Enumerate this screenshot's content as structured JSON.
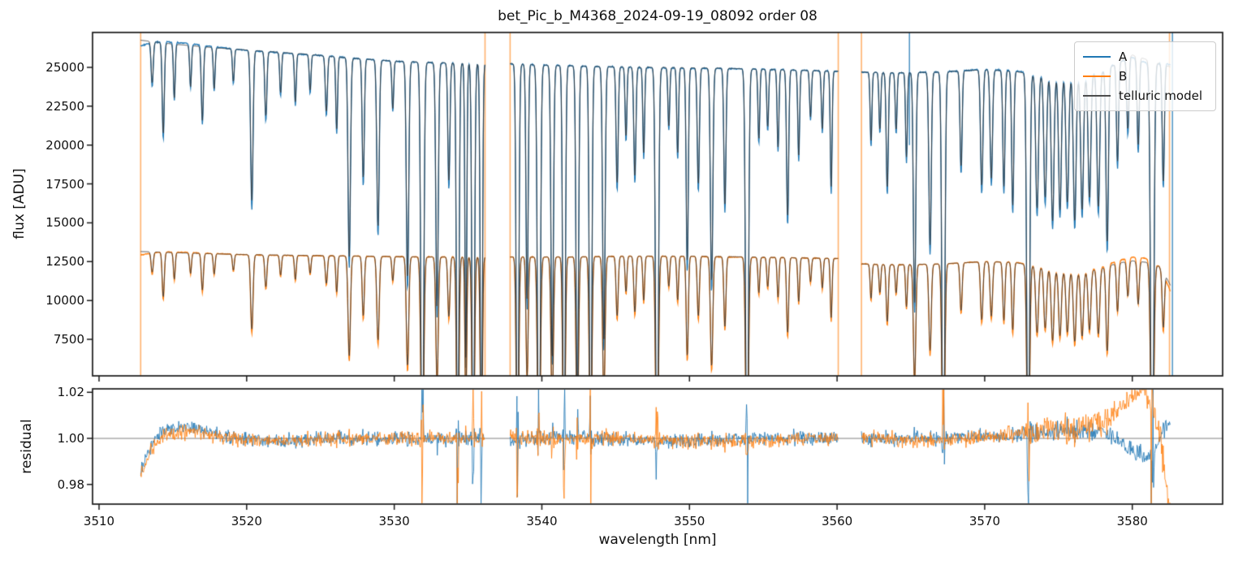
{
  "figure": {
    "title": "bet_Pic_b_M4368_2024-09-19_08092  order 08",
    "xlabel": "wavelength [nm]",
    "ylabel_top": "flux [ADU]",
    "ylabel_bottom": "residual"
  },
  "legend": {
    "entries": [
      {
        "label": "A",
        "color": "#1f77b4"
      },
      {
        "label": "B",
        "color": "#ff7f0e"
      },
      {
        "label": "telluric model",
        "color": "#4d4d4d"
      }
    ]
  },
  "chart_data": {
    "type": "line",
    "title": "bet_Pic_b_M4368_2024-09-19_08092  order 08",
    "xlabel": "wavelength [nm]",
    "xlim": [
      3509.56,
      3586.12
    ],
    "xticks": [
      3510,
      3520,
      3530,
      3540,
      3550,
      3560,
      3570,
      3580
    ],
    "grid": false,
    "legend_position": "upper right",
    "panels": [
      {
        "name": "flux",
        "ylabel": "flux [ADU]",
        "ylim": [
          5150,
          27246
        ],
        "yticks": [
          7500,
          10000,
          12500,
          15000,
          17500,
          20000,
          22500,
          25000
        ],
        "series": [
          "A",
          "B",
          "telluric model"
        ]
      },
      {
        "name": "residual",
        "ylabel": "residual",
        "ylim": [
          0.9715,
          1.0215
        ],
        "yticks": [
          0.98,
          1.0,
          1.02
        ],
        "hline": 1.0,
        "series": [
          "A residual",
          "B residual"
        ]
      }
    ],
    "colors": {
      "A": "#1f77b4",
      "B": "#ff7f0e",
      "model": "#3a3a3a",
      "vline_orange": "rgba(255,127,14,0.6)",
      "vline_blue": "rgba(31,119,180,0.75)",
      "hline": "#808080"
    },
    "segments": [
      [
        3512.82,
        3536.15
      ],
      [
        3537.85,
        3560.08
      ],
      [
        3561.65,
        3582.6
      ]
    ],
    "vlines": [
      {
        "x": 3512.82,
        "color": "orange"
      },
      {
        "x": 3536.15,
        "color": "orange"
      },
      {
        "x": 3537.85,
        "color": "orange"
      },
      {
        "x": 3560.08,
        "color": "orange"
      },
      {
        "x": 3561.65,
        "color": "orange"
      },
      {
        "x": 3582.52,
        "color": "orange"
      },
      {
        "x": 3582.72,
        "color": "blue"
      }
    ],
    "spike_up": {
      "x": 3564.9,
      "color": "blue",
      "v0": 20000,
      "v1": 27246
    },
    "continuum_A": [
      [
        3512.8,
        26750
      ],
      [
        3515,
        26500
      ],
      [
        3518,
        26250
      ],
      [
        3521,
        26050
      ],
      [
        3524,
        25850
      ],
      [
        3527,
        25600
      ],
      [
        3530,
        25400
      ],
      [
        3533,
        25300
      ],
      [
        3536.2,
        25250
      ],
      [
        3537.8,
        25250
      ],
      [
        3540,
        25150
      ],
      [
        3544,
        25050
      ],
      [
        3548,
        25000
      ],
      [
        3552,
        24950
      ],
      [
        3556,
        24850
      ],
      [
        3560.1,
        24750
      ],
      [
        3561.6,
        24700
      ],
      [
        3564,
        24650
      ],
      [
        3567,
        24700
      ],
      [
        3570,
        24850
      ],
      [
        3572,
        24750
      ],
      [
        3573.5,
        24500
      ],
      [
        3575,
        24350
      ],
      [
        3576.5,
        24300
      ],
      [
        3578,
        24700
      ],
      [
        3579,
        25300
      ],
      [
        3580,
        25800
      ],
      [
        3581,
        25500
      ],
      [
        3582,
        25200
      ],
      [
        3582.7,
        25000
      ]
    ],
    "continuum_B": [
      [
        3512.8,
        13150
      ],
      [
        3516,
        13050
      ],
      [
        3520,
        12950
      ],
      [
        3524,
        12900
      ],
      [
        3528,
        12850
      ],
      [
        3532,
        12800
      ],
      [
        3536.2,
        12800
      ],
      [
        3537.8,
        12800
      ],
      [
        3542,
        12800
      ],
      [
        3546,
        12850
      ],
      [
        3550,
        12850
      ],
      [
        3554,
        12800
      ],
      [
        3557,
        12750
      ],
      [
        3560.1,
        12700
      ],
      [
        3561.6,
        12350
      ],
      [
        3564,
        12300
      ],
      [
        3567,
        12350
      ],
      [
        3570,
        12500
      ],
      [
        3572,
        12450
      ],
      [
        3573.5,
        12200
      ],
      [
        3575,
        11900
      ],
      [
        3576.5,
        11800
      ],
      [
        3578,
        12100
      ],
      [
        3579,
        12400
      ],
      [
        3580,
        12550
      ],
      [
        3581,
        12450
      ],
      [
        3581.8,
        12200
      ],
      [
        3582.3,
        11500
      ],
      [
        3582.7,
        10750
      ]
    ],
    "deviation_A": [
      [
        3512.8,
        0.986
      ],
      [
        3513.6,
        0.998
      ],
      [
        3514.5,
        1.004
      ],
      [
        3516,
        1.005
      ],
      [
        3518,
        1.002
      ],
      [
        3520,
        0.9995
      ],
      [
        3523,
        0.999
      ],
      [
        3526,
        1.0005
      ],
      [
        3529,
        1.0
      ],
      [
        3532,
        0.9995
      ],
      [
        3535,
        1.0
      ],
      [
        3538,
        0.9995
      ],
      [
        3541,
        1.0005
      ],
      [
        3544,
        1.0
      ],
      [
        3547,
        0.999
      ],
      [
        3550,
        0.9985
      ],
      [
        3553,
        0.9995
      ],
      [
        3556,
        1.0005
      ],
      [
        3559,
        1.0
      ],
      [
        3562,
        0.9995
      ],
      [
        3565,
        1.0
      ],
      [
        3568,
        1.0005
      ],
      [
        3571,
        1.001
      ],
      [
        3573,
        1.002
      ],
      [
        3575,
        1.0035
      ],
      [
        3577,
        1.004
      ],
      [
        3578.5,
        1.0015
      ],
      [
        3579.5,
        0.997
      ],
      [
        3580.3,
        0.9925
      ],
      [
        3581,
        0.991
      ],
      [
        3581.6,
        0.995
      ],
      [
        3582.2,
        1.006
      ],
      [
        3582.7,
        1.005
      ]
    ],
    "deviation_B": [
      [
        3512.8,
        0.983
      ],
      [
        3513.6,
        0.996
      ],
      [
        3514.5,
        1.002
      ],
      [
        3516,
        1.003
      ],
      [
        3518,
        1.001
      ],
      [
        3520,
        0.9995
      ],
      [
        3523,
        0.9985
      ],
      [
        3526,
        1.0
      ],
      [
        3529,
        0.9995
      ],
      [
        3532,
        1.0005
      ],
      [
        3535,
        1.0
      ],
      [
        3538,
        1.0
      ],
      [
        3541,
        0.9995
      ],
      [
        3544,
        1.0005
      ],
      [
        3547,
        0.9995
      ],
      [
        3550,
        0.999
      ],
      [
        3553,
        0.9985
      ],
      [
        3556,
        0.9995
      ],
      [
        3559,
        1.0
      ],
      [
        3562,
        1.0005
      ],
      [
        3565,
        0.999
      ],
      [
        3568,
        0.9995
      ],
      [
        3571,
        1.001
      ],
      [
        3573,
        1.0025
      ],
      [
        3574.5,
        1.004
      ],
      [
        3576,
        1.003
      ],
      [
        3577,
        1.005
      ],
      [
        3578,
        1.008
      ],
      [
        3579,
        1.013
      ],
      [
        3580,
        1.019
      ],
      [
        3580.8,
        1.0215
      ],
      [
        3581.4,
        1.013
      ],
      [
        3581.9,
        0.998
      ],
      [
        3582.3,
        0.981
      ],
      [
        3582.7,
        0.957
      ]
    ],
    "telluric_lines": [
      [
        3513.6,
        0.1,
        0.07
      ],
      [
        3514.35,
        0.22,
        0.07
      ],
      [
        3515.1,
        0.13,
        0.06
      ],
      [
        3516.2,
        0.1,
        0.06
      ],
      [
        3517.0,
        0.18,
        0.07
      ],
      [
        3517.8,
        0.1,
        0.06
      ],
      [
        3519.1,
        0.08,
        0.06
      ],
      [
        3520.35,
        0.37,
        0.08
      ],
      [
        3521.3,
        0.16,
        0.07
      ],
      [
        3522.3,
        0.1,
        0.06
      ],
      [
        3523.3,
        0.12,
        0.06
      ],
      [
        3524.3,
        0.09,
        0.06
      ],
      [
        3525.4,
        0.14,
        0.07
      ],
      [
        3526.1,
        0.18,
        0.06
      ],
      [
        3526.95,
        0.5,
        0.08
      ],
      [
        3527.9,
        0.3,
        0.07
      ],
      [
        3528.9,
        0.42,
        0.08
      ],
      [
        3529.9,
        0.12,
        0.06
      ],
      [
        3530.9,
        0.55,
        0.08
      ],
      [
        3531.9,
        1.15,
        0.09
      ],
      [
        3532.9,
        0.62,
        0.08
      ],
      [
        3533.7,
        0.3,
        0.07
      ],
      [
        3534.3,
        1.1,
        0.08
      ],
      [
        3534.85,
        0.75,
        0.06
      ],
      [
        3535.35,
        1.15,
        0.08
      ],
      [
        3535.9,
        1.05,
        0.07
      ],
      [
        3538.35,
        1.15,
        0.08
      ],
      [
        3539.0,
        0.6,
        0.07
      ],
      [
        3539.8,
        1.2,
        0.09
      ],
      [
        3540.7,
        0.75,
        0.08
      ],
      [
        3541.5,
        1.15,
        0.08
      ],
      [
        3542.4,
        0.9,
        0.08
      ],
      [
        3543.3,
        1.1,
        0.08
      ],
      [
        3544.2,
        0.7,
        0.08
      ],
      [
        3545.1,
        0.3,
        0.07
      ],
      [
        3545.7,
        0.18,
        0.06
      ],
      [
        3546.3,
        0.28,
        0.07
      ],
      [
        3546.9,
        0.22,
        0.06
      ],
      [
        3547.8,
        1.15,
        0.09
      ],
      [
        3548.6,
        0.15,
        0.06
      ],
      [
        3549.2,
        0.22,
        0.06
      ],
      [
        3549.85,
        0.5,
        0.07
      ],
      [
        3550.6,
        0.3,
        0.07
      ],
      [
        3551.5,
        0.55,
        0.08
      ],
      [
        3552.4,
        0.35,
        0.07
      ],
      [
        3553.9,
        1.15,
        0.09
      ],
      [
        3554.7,
        0.18,
        0.06
      ],
      [
        3555.3,
        0.15,
        0.06
      ],
      [
        3556.0,
        0.2,
        0.06
      ],
      [
        3556.65,
        0.38,
        0.07
      ],
      [
        3557.4,
        0.22,
        0.06
      ],
      [
        3558.2,
        0.12,
        0.06
      ],
      [
        3559.0,
        0.15,
        0.06
      ],
      [
        3559.6,
        0.3,
        0.06
      ],
      [
        3562.3,
        0.18,
        0.06
      ],
      [
        3562.9,
        0.15,
        0.06
      ],
      [
        3563.4,
        0.3,
        0.07
      ],
      [
        3564.0,
        0.15,
        0.06
      ],
      [
        3564.7,
        0.22,
        0.06
      ],
      [
        3565.25,
        0.6,
        0.08
      ],
      [
        3566.3,
        0.45,
        0.08
      ],
      [
        3567.2,
        1.15,
        0.09
      ],
      [
        3568.4,
        0.25,
        0.07
      ],
      [
        3569.8,
        0.3,
        0.08
      ],
      [
        3570.45,
        0.28,
        0.08
      ],
      [
        3571.3,
        0.3,
        0.07
      ],
      [
        3571.9,
        0.35,
        0.07
      ],
      [
        3572.95,
        1.15,
        0.09
      ],
      [
        3573.55,
        0.35,
        0.09
      ],
      [
        3574.1,
        0.32,
        0.09
      ],
      [
        3574.6,
        0.38,
        0.09
      ],
      [
        3575.1,
        0.35,
        0.09
      ],
      [
        3575.6,
        0.33,
        0.09
      ],
      [
        3576.1,
        0.38,
        0.09
      ],
      [
        3576.6,
        0.35,
        0.09
      ],
      [
        3577.1,
        0.32,
        0.09
      ],
      [
        3577.7,
        0.35,
        0.09
      ],
      [
        3578.3,
        0.45,
        0.08
      ],
      [
        3579.0,
        0.25,
        0.07
      ],
      [
        3579.7,
        0.18,
        0.07
      ],
      [
        3580.4,
        0.22,
        0.07
      ],
      [
        3581.35,
        1.2,
        0.1
      ],
      [
        3582.1,
        0.3,
        0.07
      ]
    ],
    "noise_seed": 1337
  }
}
